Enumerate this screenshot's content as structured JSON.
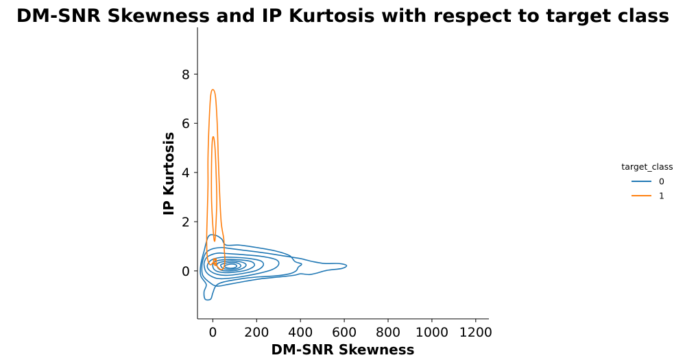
{
  "chart_data": {
    "type": "kde-contour",
    "title": "DM-SNR Skewness and IP Kurtosis with respect to target class",
    "xlabel": "DM-SNR Skewness",
    "ylabel": "IP Kurtosis",
    "xlim": [
      -70,
      1260
    ],
    "ylim": [
      -1.95,
      9.9
    ],
    "xticks": [
      0,
      200,
      400,
      600,
      800,
      1000,
      1200
    ],
    "yticks": [
      0,
      2,
      4,
      6,
      8
    ],
    "grid": false,
    "legend": {
      "title": "target_class",
      "placement": "right",
      "entries": [
        {
          "label": "0",
          "color": "#1f77b4"
        },
        {
          "label": "1",
          "color": "#ff7f0e"
        }
      ]
    },
    "series": [
      {
        "target_class": "0",
        "color": "#1f77b4",
        "contours": [
          [
            [
              -20,
              1.4
            ],
            [
              10,
              1.45
            ],
            [
              40,
              1.3
            ],
            [
              60,
              1.05
            ],
            [
              120,
              1.05
            ],
            [
              200,
              0.95
            ],
            [
              290,
              0.8
            ],
            [
              350,
              0.62
            ],
            [
              375,
              0.38
            ],
            [
              405,
              0.28
            ],
            [
              390,
              0.15
            ],
            [
              380,
              0.0
            ],
            [
              350,
              -0.12
            ],
            [
              290,
              -0.2
            ],
            [
              200,
              -0.25
            ],
            [
              130,
              -0.32
            ],
            [
              50,
              -0.45
            ],
            [
              15,
              -0.6
            ],
            [
              0,
              -0.9
            ],
            [
              -10,
              -1.15
            ],
            [
              -35,
              -1.15
            ],
            [
              -40,
              -0.85
            ],
            [
              -30,
              -0.55
            ],
            [
              -55,
              -0.2
            ],
            [
              -55,
              0.25
            ],
            [
              -40,
              0.8
            ]
          ],
          [
            [
              -30,
              0.75
            ],
            [
              0,
              0.9
            ],
            [
              40,
              0.95
            ],
            [
              70,
              0.92
            ],
            [
              130,
              0.85
            ],
            [
              220,
              0.75
            ],
            [
              330,
              0.6
            ],
            [
              400,
              0.5
            ],
            [
              455,
              0.38
            ],
            [
              510,
              0.3
            ],
            [
              575,
              0.3
            ],
            [
              610,
              0.22
            ],
            [
              590,
              0.1
            ],
            [
              520,
              0.02
            ],
            [
              470,
              -0.1
            ],
            [
              440,
              -0.15
            ],
            [
              400,
              -0.12
            ],
            [
              370,
              -0.18
            ],
            [
              300,
              -0.25
            ],
            [
              220,
              -0.32
            ],
            [
              150,
              -0.42
            ],
            [
              70,
              -0.55
            ],
            [
              20,
              -0.62
            ],
            [
              -10,
              -0.5
            ],
            [
              -45,
              -0.2
            ],
            [
              -50,
              0.15
            ],
            [
              -45,
              0.45
            ]
          ],
          [
            [
              -20,
              0.6
            ],
            [
              20,
              0.72
            ],
            [
              70,
              0.7
            ],
            [
              150,
              0.65
            ],
            [
              230,
              0.58
            ],
            [
              290,
              0.45
            ],
            [
              300,
              0.25
            ],
            [
              270,
              0.05
            ],
            [
              200,
              -0.12
            ],
            [
              120,
              -0.25
            ],
            [
              40,
              -0.32
            ],
            [
              0,
              -0.25
            ],
            [
              -30,
              -0.05
            ],
            [
              -40,
              0.25
            ],
            [
              -35,
              0.45
            ]
          ],
          [
            [
              -5,
              0.45
            ],
            [
              40,
              0.55
            ],
            [
              100,
              0.55
            ],
            [
              170,
              0.5
            ],
            [
              220,
              0.4
            ],
            [
              230,
              0.22
            ],
            [
              200,
              0.02
            ],
            [
              140,
              -0.1
            ],
            [
              70,
              -0.18
            ],
            [
              20,
              -0.14
            ],
            [
              -15,
              0.02
            ],
            [
              -25,
              0.22
            ]
          ],
          [
            [
              10,
              0.38
            ],
            [
              60,
              0.46
            ],
            [
              120,
              0.45
            ],
            [
              175,
              0.38
            ],
            [
              190,
              0.22
            ],
            [
              160,
              0.05
            ],
            [
              110,
              -0.04
            ],
            [
              55,
              -0.07
            ],
            [
              15,
              0.0
            ],
            [
              0,
              0.18
            ]
          ],
          [
            [
              25,
              0.32
            ],
            [
              70,
              0.4
            ],
            [
              120,
              0.38
            ],
            [
              150,
              0.28
            ],
            [
              145,
              0.15
            ],
            [
              115,
              0.04
            ],
            [
              70,
              0.0
            ],
            [
              35,
              0.04
            ],
            [
              20,
              0.18
            ]
          ],
          [
            [
              40,
              0.27
            ],
            [
              80,
              0.34
            ],
            [
              115,
              0.31
            ],
            [
              128,
              0.2
            ],
            [
              112,
              0.1
            ],
            [
              80,
              0.06
            ],
            [
              50,
              0.09
            ],
            [
              38,
              0.18
            ]
          ],
          [
            [
              55,
              0.22
            ],
            [
              85,
              0.28
            ],
            [
              105,
              0.25
            ],
            [
              108,
              0.17
            ],
            [
              90,
              0.11
            ],
            [
              65,
              0.12
            ],
            [
              55,
              0.17
            ]
          ]
        ]
      },
      {
        "target_class": "1",
        "color": "#ff7f0e",
        "contours": [
          [
            [
              -25,
              2.4
            ],
            [
              -22,
              3.5
            ],
            [
              -22,
              4.6
            ],
            [
              -17,
              6.0
            ],
            [
              -10,
              7.1
            ],
            [
              0,
              7.37
            ],
            [
              12,
              7.1
            ],
            [
              20,
              6.0
            ],
            [
              25,
              4.6
            ],
            [
              30,
              3.4
            ],
            [
              38,
              2.0
            ],
            [
              50,
              1.3
            ],
            [
              52,
              0.9
            ],
            [
              55,
              0.4
            ],
            [
              48,
              0.1
            ],
            [
              35,
              0.06
            ],
            [
              20,
              0.18
            ],
            [
              5,
              0.35
            ],
            [
              -12,
              0.25
            ],
            [
              -25,
              0.55
            ],
            [
              -28,
              1.3
            ]
          ],
          [
            [
              -6,
              3.0
            ],
            [
              -6,
              4.2
            ],
            [
              -3,
              5.2
            ],
            [
              3,
              5.45
            ],
            [
              10,
              5.0
            ],
            [
              15,
              4.0
            ],
            [
              18,
              2.8
            ],
            [
              12,
              1.5
            ],
            [
              8,
              1.2
            ],
            [
              3,
              1.5
            ],
            [
              -3,
              2.3
            ]
          ],
          [
            [
              5,
              0.5
            ],
            [
              10,
              0.42
            ],
            [
              14,
              0.5
            ],
            [
              16,
              0.35
            ],
            [
              12,
              0.22
            ],
            [
              6,
              0.28
            ],
            [
              3,
              0.38
            ]
          ]
        ]
      }
    ]
  }
}
